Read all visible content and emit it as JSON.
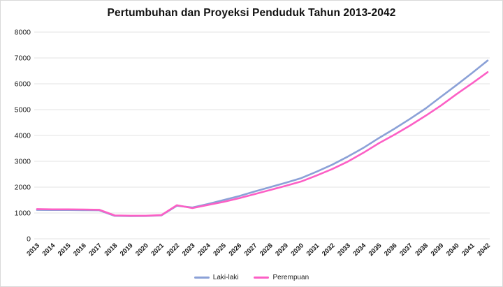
{
  "title": "Pertumbuhan dan Proyeksi Penduduk Tahun 2013-2042",
  "colors": {
    "laki_laki": "#8BA1D7",
    "perempuan": "#FC5FC5",
    "grid": "#e3e3e3",
    "axis_text": "#1a1a1a",
    "card_border": "#d9d9d9",
    "background": "#ffffff"
  },
  "chart_data": {
    "type": "line",
    "x": [
      2013,
      2014,
      2015,
      2016,
      2017,
      2018,
      2019,
      2020,
      2021,
      2022,
      2023,
      2024,
      2025,
      2026,
      2027,
      2028,
      2029,
      2030,
      2031,
      2032,
      2033,
      2034,
      2035,
      2036,
      2037,
      2038,
      2039,
      2040,
      2041,
      2042
    ],
    "series": [
      {
        "name": "Laki-laki",
        "color": "#8BA1D7",
        "values": [
          1120,
          1115,
          1115,
          1110,
          1105,
          890,
          880,
          885,
          905,
          1280,
          1210,
          1350,
          1500,
          1650,
          1830,
          2000,
          2170,
          2350,
          2600,
          2870,
          3180,
          3520,
          3900,
          4260,
          4640,
          5040,
          5500,
          5950,
          6420,
          6900
        ]
      },
      {
        "name": "Perempuan",
        "color": "#FC5FC5",
        "values": [
          1150,
          1140,
          1140,
          1135,
          1125,
          905,
          895,
          895,
          915,
          1300,
          1190,
          1310,
          1430,
          1570,
          1730,
          1890,
          2050,
          2220,
          2450,
          2700,
          2990,
          3330,
          3700,
          4030,
          4380,
          4760,
          5160,
          5600,
          6020,
          6450
        ]
      }
    ],
    "title": "Pertumbuhan dan Proyeksi Penduduk Tahun 2013-2042",
    "xlabel": "",
    "ylabel": "",
    "ylim": [
      0,
      8000
    ],
    "yticks": [
      0,
      1000,
      2000,
      3000,
      4000,
      5000,
      6000,
      7000,
      8000
    ],
    "grid": true,
    "legend_position": "bottom"
  },
  "legend": {
    "items": [
      {
        "label": "Laki-laki"
      },
      {
        "label": "Perempuan"
      }
    ]
  }
}
